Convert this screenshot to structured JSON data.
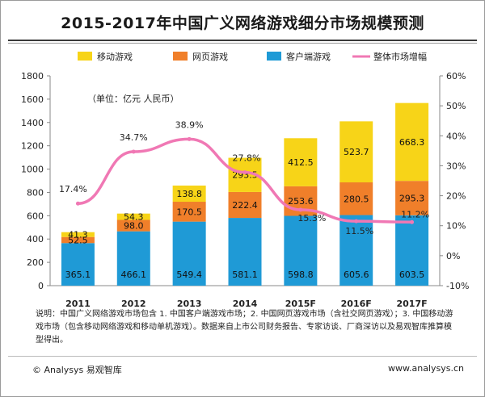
{
  "chart_data": {
    "type": "bar",
    "stacked": true,
    "title": "2015-2017年中国广义网络游戏细分市场规模预测",
    "unit_label": "（单位：亿元 人民币）",
    "categories": [
      "2011",
      "2012",
      "2013",
      "2014",
      "2015F",
      "2016F",
      "2017F"
    ],
    "series": [
      {
        "name": "客户端游戏",
        "color": "#1f9ad6",
        "values": [
          365.1,
          466.1,
          549.4,
          581.1,
          598.8,
          605.6,
          603.5
        ]
      },
      {
        "name": "网页游戏",
        "color": "#f07f2a",
        "values": [
          52.5,
          98.0,
          170.5,
          222.4,
          253.6,
          280.5,
          295.3
        ]
      },
      {
        "name": "移动游戏",
        "color": "#f7d418",
        "values": [
          41.3,
          54.3,
          138.8,
          293.5,
          412.5,
          523.7,
          668.3
        ]
      }
    ],
    "series_value_labels": [
      [
        "365.1",
        "466.1",
        "549.4",
        "581.1",
        "598.8",
        "605.6",
        "603.5"
      ],
      [
        "52.5",
        "98.0",
        "170.5",
        "222.4",
        "253.6",
        "280.5",
        "295.3"
      ],
      [
        "41.3",
        "54.3",
        "138.8",
        "293.5",
        "412.5",
        "523.7",
        "668.3"
      ]
    ],
    "line": {
      "name": "整体市场增幅",
      "color": "#f078b4",
      "values": [
        17.4,
        34.7,
        38.9,
        27.8,
        15.3,
        11.5,
        11.2
      ],
      "labels": [
        "17.4%",
        "34.7%",
        "38.9%",
        "27.8%",
        "15.3%",
        "11.5%",
        "11.2%"
      ]
    },
    "legend_order": [
      "移动游戏",
      "网页游戏",
      "客户端游戏",
      "整体市场增幅"
    ],
    "ylim": [
      0,
      1800
    ],
    "yticks": [
      "0",
      "200",
      "400",
      "600",
      "800",
      "1000",
      "1200",
      "1400",
      "1600",
      "1800"
    ],
    "ylim_right": [
      -10,
      60
    ],
    "yticks_right": [
      "-10%",
      "0%",
      "10%",
      "20%",
      "30%",
      "40%",
      "50%",
      "60%"
    ],
    "grid": false,
    "legend_position": "top"
  },
  "note": "说明：中国广义网络游戏市场包含 1. 中国客户端游戏市场；2. 中国网页游戏市场（含社交网页游戏）；3. 中国移动游戏市场（包含移动网络游戏和移动单机游戏）。数据来自上市公司财务报告、专家访谈、厂商深访以及易观智库推算模型得出。",
  "footer": {
    "left": "© Analysys 易观智库",
    "right": "www.analysys.cn"
  },
  "colors": {
    "axis": "#888888",
    "text": "#222222"
  }
}
